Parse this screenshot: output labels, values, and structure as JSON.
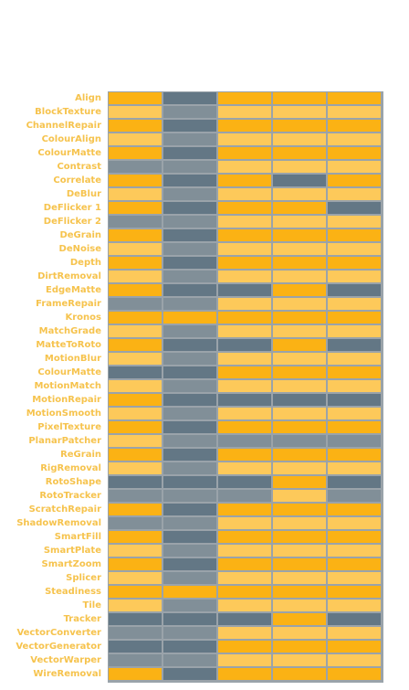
{
  "colors": {
    "O": "#fbb214",
    "L": "#fdc95a",
    "D": "#637785",
    "G": "#818f98",
    "label": "#f6c34d",
    "grid_line": "#9aa3aa"
  },
  "rows": [
    {
      "label": "Align",
      "cells": [
        "O",
        "D",
        "O",
        "O",
        "O"
      ]
    },
    {
      "label": "BlockTexture",
      "cells": [
        "L",
        "G",
        "L",
        "L",
        "L"
      ]
    },
    {
      "label": "ChannelRepair",
      "cells": [
        "O",
        "D",
        "O",
        "O",
        "O"
      ]
    },
    {
      "label": "ColourAlign",
      "cells": [
        "L",
        "G",
        "L",
        "L",
        "L"
      ]
    },
    {
      "label": "ColourMatte",
      "cells": [
        "O",
        "D",
        "O",
        "O",
        "O"
      ]
    },
    {
      "label": "Contrast",
      "cells": [
        "G",
        "G",
        "L",
        "L",
        "L"
      ]
    },
    {
      "label": "Correlate",
      "cells": [
        "O",
        "D",
        "O",
        "D",
        "O"
      ]
    },
    {
      "label": "DeBlur",
      "cells": [
        "L",
        "G",
        "L",
        "L",
        "L"
      ]
    },
    {
      "label": "DeFlicker 1",
      "cells": [
        "O",
        "D",
        "O",
        "O",
        "D"
      ]
    },
    {
      "label": "DeFlicker 2",
      "cells": [
        "G",
        "G",
        "L",
        "L",
        "L"
      ]
    },
    {
      "label": "DeGrain",
      "cells": [
        "O",
        "D",
        "O",
        "O",
        "O"
      ]
    },
    {
      "label": "DeNoise",
      "cells": [
        "L",
        "G",
        "L",
        "L",
        "L"
      ]
    },
    {
      "label": "Depth",
      "cells": [
        "O",
        "D",
        "O",
        "O",
        "O"
      ]
    },
    {
      "label": "DirtRemoval",
      "cells": [
        "L",
        "G",
        "L",
        "L",
        "L"
      ]
    },
    {
      "label": "EdgeMatte",
      "cells": [
        "O",
        "D",
        "D",
        "O",
        "D"
      ]
    },
    {
      "label": "FrameRepair",
      "cells": [
        "G",
        "G",
        "L",
        "L",
        "L"
      ]
    },
    {
      "label": "Kronos",
      "cells": [
        "O",
        "O",
        "O",
        "O",
        "O"
      ]
    },
    {
      "label": "MatchGrade",
      "cells": [
        "L",
        "G",
        "L",
        "L",
        "L"
      ]
    },
    {
      "label": "MatteToRoto",
      "cells": [
        "O",
        "D",
        "D",
        "O",
        "D"
      ]
    },
    {
      "label": "MotionBlur",
      "cells": [
        "L",
        "G",
        "L",
        "L",
        "L"
      ]
    },
    {
      "label": "ColourMatte",
      "cells": [
        "D",
        "D",
        "O",
        "O",
        "O"
      ]
    },
    {
      "label": "MotionMatch",
      "cells": [
        "L",
        "G",
        "L",
        "L",
        "L"
      ]
    },
    {
      "label": "MotionRepair",
      "cells": [
        "O",
        "D",
        "D",
        "D",
        "D"
      ]
    },
    {
      "label": "MotionSmooth",
      "cells": [
        "L",
        "G",
        "L",
        "L",
        "L"
      ]
    },
    {
      "label": "PixelTexture",
      "cells": [
        "O",
        "D",
        "O",
        "O",
        "O"
      ]
    },
    {
      "label": "PlanarPatcher",
      "cells": [
        "L",
        "G",
        "G",
        "G",
        "G"
      ]
    },
    {
      "label": "ReGrain",
      "cells": [
        "O",
        "D",
        "O",
        "O",
        "O"
      ]
    },
    {
      "label": "RigRemoval",
      "cells": [
        "L",
        "G",
        "L",
        "L",
        "L"
      ]
    },
    {
      "label": "RotoShape",
      "cells": [
        "D",
        "D",
        "D",
        "O",
        "D"
      ]
    },
    {
      "label": "RotoTracker",
      "cells": [
        "G",
        "G",
        "G",
        "L",
        "G"
      ]
    },
    {
      "label": "ScratchRepair",
      "cells": [
        "O",
        "D",
        "O",
        "O",
        "O"
      ]
    },
    {
      "label": "ShadowRemoval",
      "cells": [
        "G",
        "G",
        "L",
        "L",
        "L"
      ]
    },
    {
      "label": "SmartFill",
      "cells": [
        "O",
        "D",
        "O",
        "O",
        "O"
      ]
    },
    {
      "label": "SmartPlate",
      "cells": [
        "L",
        "G",
        "L",
        "L",
        "L"
      ]
    },
    {
      "label": "SmartZoom",
      "cells": [
        "O",
        "D",
        "O",
        "O",
        "O"
      ]
    },
    {
      "label": "Splicer",
      "cells": [
        "L",
        "G",
        "L",
        "L",
        "L"
      ]
    },
    {
      "label": "Steadiness",
      "cells": [
        "O",
        "O",
        "O",
        "O",
        "O"
      ]
    },
    {
      "label": "Tile",
      "cells": [
        "L",
        "G",
        "L",
        "L",
        "L"
      ]
    },
    {
      "label": "Tracker",
      "cells": [
        "D",
        "D",
        "D",
        "O",
        "D"
      ]
    },
    {
      "label": "VectorConverter",
      "cells": [
        "G",
        "G",
        "L",
        "L",
        "L"
      ]
    },
    {
      "label": "VectorGenerator",
      "cells": [
        "D",
        "D",
        "O",
        "O",
        "O"
      ]
    },
    {
      "label": "VectorWarper",
      "cells": [
        "G",
        "G",
        "L",
        "L",
        "L"
      ]
    },
    {
      "label": "WireRemoval",
      "cells": [
        "O",
        "D",
        "O",
        "O",
        "O"
      ]
    }
  ]
}
